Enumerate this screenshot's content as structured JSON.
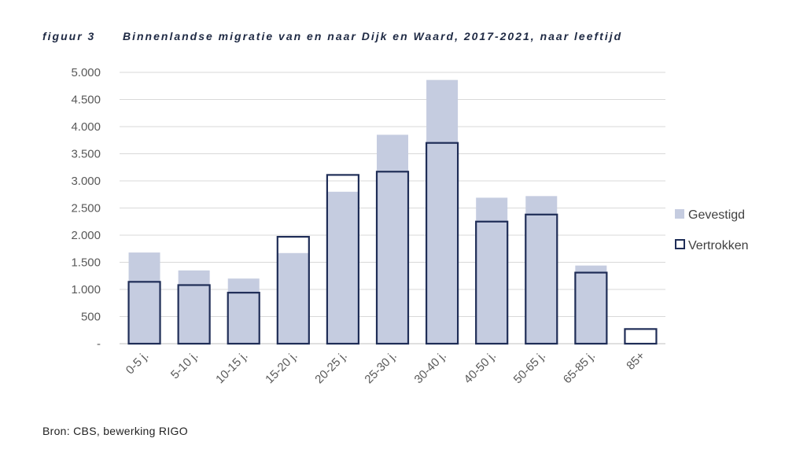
{
  "figure": {
    "number": "figuur 3",
    "title": "Binnenlandse migratie van en naar Dijk en Waard, 2017-2021, naar leeftijd"
  },
  "source": "Bron: CBS, bewerking RIGO",
  "chart_data": {
    "type": "bar",
    "title": "Binnenlandse migratie van en naar Dijk en Waard, 2017-2021, naar leeftijd",
    "categories": [
      "0-5 j.",
      "5-10 j.",
      "10-15 j.",
      "15-20 j.",
      "20-25 j.",
      "25-30 j.",
      "30-40 j.",
      "40-50 j.",
      "50-65 j.",
      "65-85 j.",
      "85+"
    ],
    "series": [
      {
        "name": "Gevestigd",
        "values": [
          1680,
          1350,
          1200,
          1670,
          2800,
          3850,
          4860,
          2690,
          2720,
          1440,
          0
        ],
        "color": "#c5cce0",
        "style": "filled"
      },
      {
        "name": "Vertrokken",
        "values": [
          1140,
          1080,
          940,
          1970,
          3110,
          3170,
          3700,
          2250,
          2380,
          1310,
          270
        ],
        "color": "#1f2d57",
        "style": "outline"
      }
    ],
    "y_ticks": [
      "-",
      "500",
      "1.000",
      "1.500",
      "2.000",
      "2.500",
      "3.000",
      "3.500",
      "4.000",
      "4.500",
      "5.000"
    ],
    "ylim": [
      0,
      5000
    ],
    "grid": true,
    "legend_position": "right"
  }
}
